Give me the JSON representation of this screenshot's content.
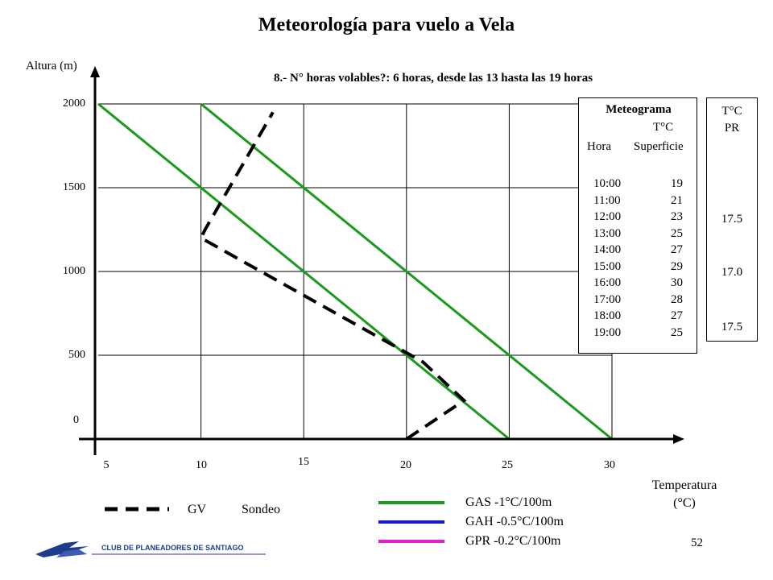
{
  "chart_data": {
    "type": "line",
    "title": "Meteorología para vuelo a Vela",
    "subtitle": "8.- N° horas volables?: 6 horas, desde las 13 hasta las 19 horas",
    "ylabel": "Altura (m)",
    "xlabel_line1": "Temperatura",
    "xlabel_line2": "(°C)",
    "xlim": [
      5,
      30
    ],
    "ylim": [
      0,
      2000
    ],
    "x_ticks": [
      "5",
      "10",
      "15",
      "20",
      "25",
      "30"
    ],
    "y_ticks": [
      "0",
      "500",
      "1000",
      "1500",
      "2000"
    ],
    "grid": true,
    "series": [
      {
        "name": "GAS -1°C/100m",
        "color": "#1a9a1a",
        "dash": false,
        "points": [
          [
            5,
            2000
          ],
          [
            25,
            0
          ]
        ]
      },
      {
        "name": "GAS -1°C/100m",
        "color": "#1a9a1a",
        "dash": false,
        "points": [
          [
            10,
            2000
          ],
          [
            30,
            0
          ]
        ]
      },
      {
        "name": "Sondeo",
        "color": "#000000",
        "dash": true,
        "points": [
          [
            20,
            0
          ],
          [
            22.8,
            230
          ],
          [
            20.8,
            460
          ],
          [
            10,
            1200
          ],
          [
            10.2,
            1250
          ],
          [
            13.5,
            1950
          ]
        ]
      }
    ]
  },
  "meteograma": {
    "title": "Meteograma",
    "col_temp_header": "T°C",
    "col_hour_header": "Hora",
    "col_surface_header": "Superficie",
    "rows": [
      {
        "hour": "10:00",
        "temp": "19"
      },
      {
        "hour": "11:00",
        "temp": "21"
      },
      {
        "hour": "12:00",
        "temp": "23"
      },
      {
        "hour": "13:00",
        "temp": "25"
      },
      {
        "hour": "14:00",
        "temp": "27"
      },
      {
        "hour": "15:00",
        "temp": "29"
      },
      {
        "hour": "16:00",
        "temp": "30"
      },
      {
        "hour": "17:00",
        "temp": "28"
      },
      {
        "hour": "18:00",
        "temp": "27"
      },
      {
        "hour": "19:00",
        "temp": "25"
      }
    ]
  },
  "pr_box": {
    "header1": "T°C",
    "header2": "PR",
    "values": [
      "17.5",
      "17.0",
      "17.5"
    ]
  },
  "legend": {
    "gv_label": "GV",
    "sondeo_label": "Sondeo",
    "gas_label": "GAS -1°C/100m",
    "gah_label": "GAH -0.5°C/100m",
    "gpr_label": "GPR -0.2°C/100m",
    "gas_color": "#1a9a1a",
    "gah_color": "#1a1acc",
    "gpr_color": "#e020d0"
  },
  "footer": {
    "logo_text": "CLUB DE PLANEADORES DE SANTIAGO",
    "page_number": "52"
  }
}
